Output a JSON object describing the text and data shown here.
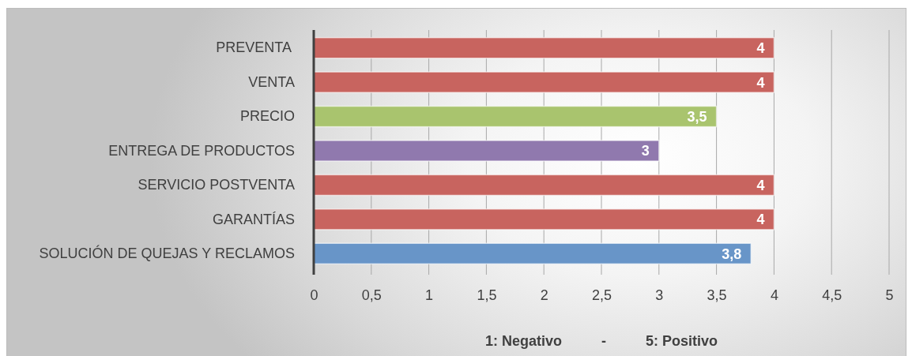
{
  "chart_data": {
    "type": "bar",
    "orientation": "horizontal",
    "xlabel": "1: Negativo          -          5: Positivo",
    "categories": [
      "PREVENTA ",
      "VENTA",
      "PRECIO",
      "ENTREGA DE PRODUCTOS",
      "SERVICIO POSTVENTA",
      "GARANTÍAS",
      "SOLUCIÓN DE QUEJAS Y RECLAMOS"
    ],
    "values": [
      4,
      4,
      3.5,
      3,
      4,
      4,
      3.8
    ],
    "colors": [
      "#c8645f",
      "#c8645f",
      "#a9c46e",
      "#9079ae",
      "#c8645f",
      "#c8645f",
      "#6895c8"
    ],
    "value_labels": [
      "4",
      "4",
      "3,5",
      "3",
      "4",
      "4",
      "3,8"
    ],
    "xlim": [
      0,
      5
    ],
    "xticks": [
      0,
      {
        "value": 0.5,
        "label": "0,5"
      },
      1,
      {
        "value": 1.5,
        "label": "1,5"
      },
      2,
      {
        "value": 2.5,
        "label": "2,5"
      },
      3,
      {
        "value": 3.5,
        "label": "3,5"
      },
      4,
      {
        "value": 4.5,
        "label": "4,5"
      },
      5
    ],
    "grid": "x"
  }
}
